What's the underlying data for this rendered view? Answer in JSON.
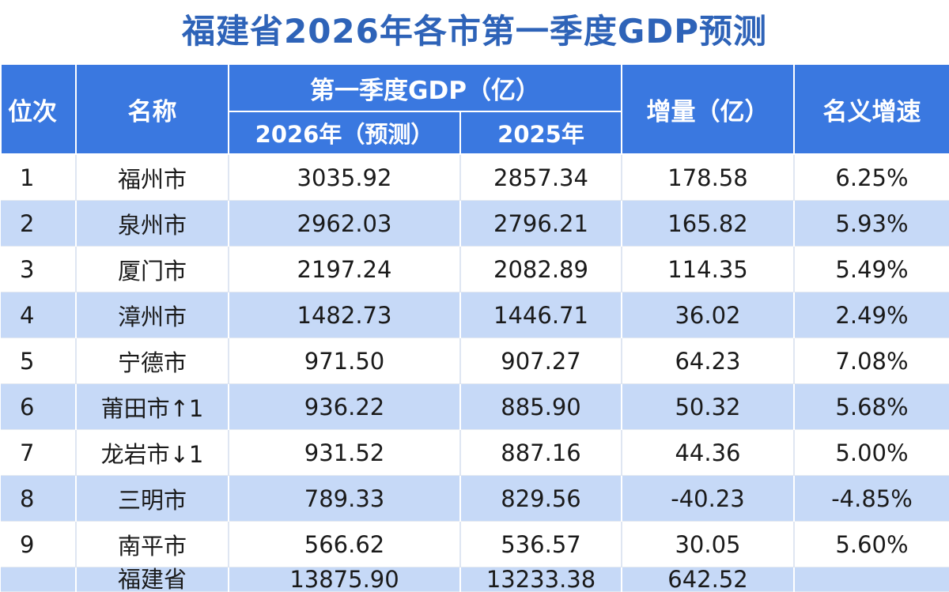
{
  "title": "福建省2026年各市第一季度GDP预测",
  "header": {
    "rank": "位次",
    "name": "名称",
    "gdp_group": "第一季度GDP（亿）",
    "gdp_2026": "2026年（预测）",
    "gdp_2025": "2025年",
    "increase": "增量（亿）",
    "growth": "名义增速"
  },
  "rows": [
    {
      "rank": "1",
      "name": "福州市",
      "gdp_2026": "3035.92",
      "gdp_2025": "2857.34",
      "increase": "178.58",
      "growth": "6.25%"
    },
    {
      "rank": "2",
      "name": "泉州市",
      "gdp_2026": "2962.03",
      "gdp_2025": "2796.21",
      "increase": "165.82",
      "growth": "5.93%"
    },
    {
      "rank": "3",
      "name": "厦门市",
      "gdp_2026": "2197.24",
      "gdp_2025": "2082.89",
      "increase": "114.35",
      "growth": "5.49%"
    },
    {
      "rank": "4",
      "name": "漳州市",
      "gdp_2026": "1482.73",
      "gdp_2025": "1446.71",
      "increase": "36.02",
      "growth": "2.49%"
    },
    {
      "rank": "5",
      "name": "宁德市",
      "gdp_2026": "971.50",
      "gdp_2025": "907.27",
      "increase": "64.23",
      "growth": "7.08%"
    },
    {
      "rank": "6",
      "name": "莆田市↑1",
      "gdp_2026": "936.22",
      "gdp_2025": "885.90",
      "increase": "50.32",
      "growth": "5.68%"
    },
    {
      "rank": "7",
      "name": "龙岩市↓1",
      "gdp_2026": "931.52",
      "gdp_2025": "887.16",
      "increase": "44.36",
      "growth": "5.00%"
    },
    {
      "rank": "8",
      "name": "三明市",
      "gdp_2026": "789.33",
      "gdp_2025": "829.56",
      "increase": "-40.23",
      "growth": "-4.85%"
    },
    {
      "rank": "9",
      "name": "南平市",
      "gdp_2026": "566.62",
      "gdp_2025": "536.57",
      "increase": "30.05",
      "growth": "5.60%"
    }
  ],
  "total_row": {
    "name": "福建省",
    "gdp_2026": "13875.90",
    "gdp_2025": "13233.38",
    "increase": "642.52"
  }
}
